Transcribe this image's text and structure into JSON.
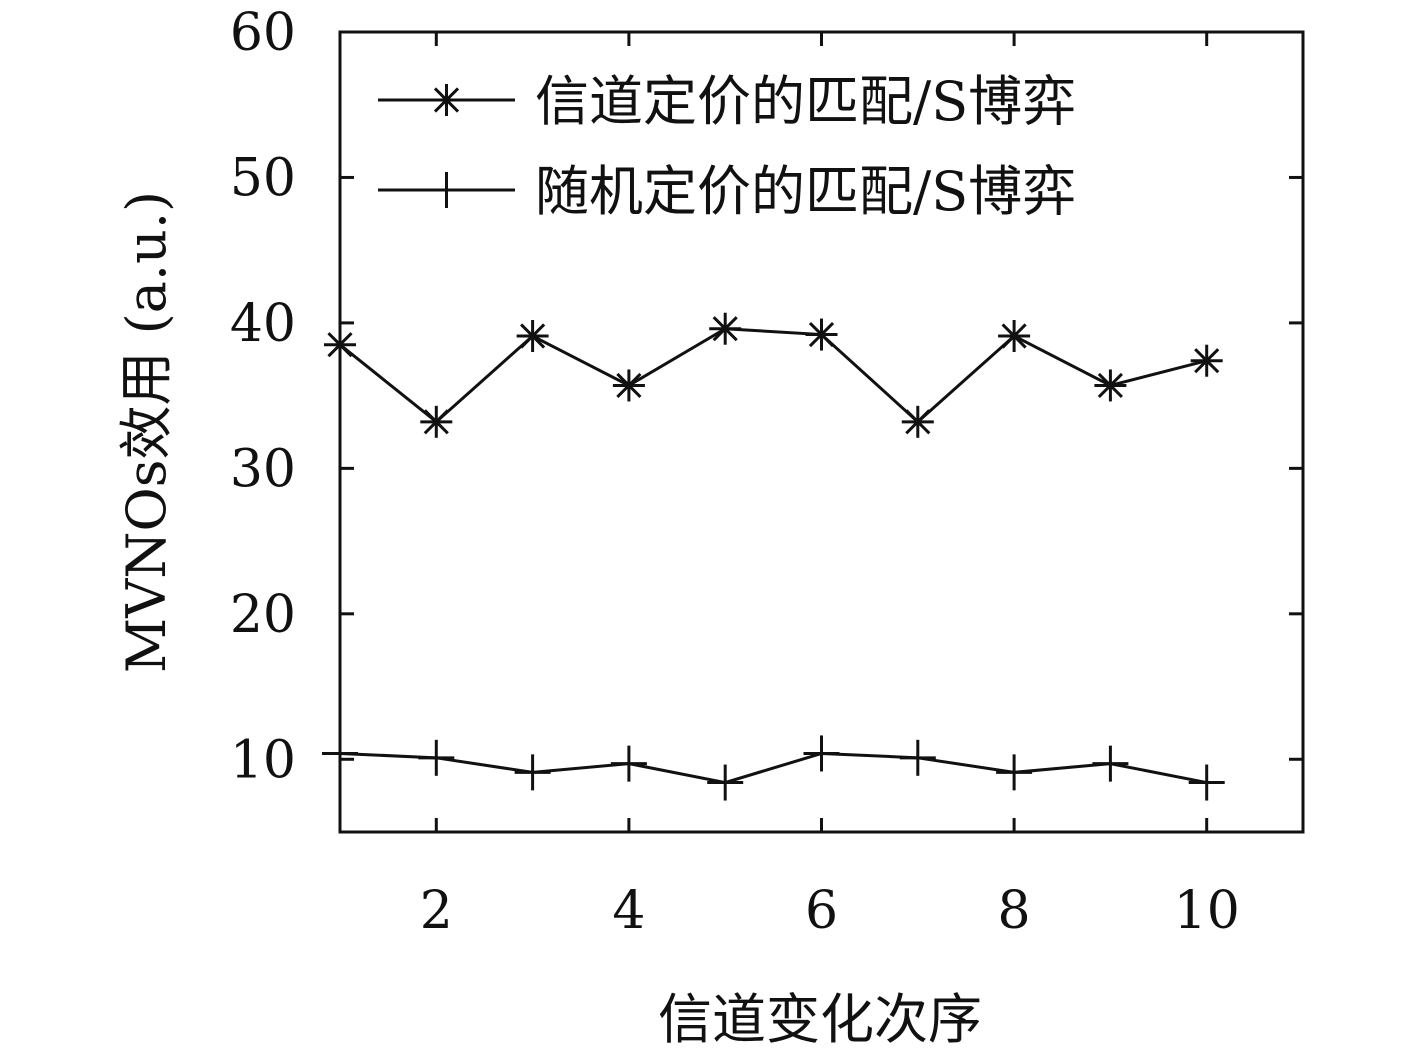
{
  "chart_data": {
    "type": "line",
    "xlabel": "信道变化次序",
    "ylabel": "MVNOs效用 (a.u.)",
    "xlim": [
      1,
      11
    ],
    "ylim": [
      5,
      60
    ],
    "xticks": [
      2,
      4,
      6,
      8,
      10
    ],
    "yticks": [
      10,
      20,
      30,
      40,
      50,
      60
    ],
    "grid": false,
    "legend_position": "top-left",
    "x": [
      1,
      2,
      3,
      4,
      5,
      6,
      7,
      8,
      9,
      10
    ],
    "series": [
      {
        "name": "信道定价的匹配/S博弈",
        "marker": "asterisk",
        "color": "#111111",
        "values": [
          38.5,
          33.2,
          39.1,
          35.7,
          39.6,
          39.2,
          33.2,
          39.1,
          35.7,
          37.4
        ]
      },
      {
        "name": "随机定价的匹配/S博弈",
        "marker": "plus",
        "color": "#111111",
        "values": [
          10.4,
          10.1,
          9.1,
          9.7,
          8.4,
          10.4,
          10.1,
          9.1,
          9.7,
          8.4
        ]
      }
    ]
  }
}
